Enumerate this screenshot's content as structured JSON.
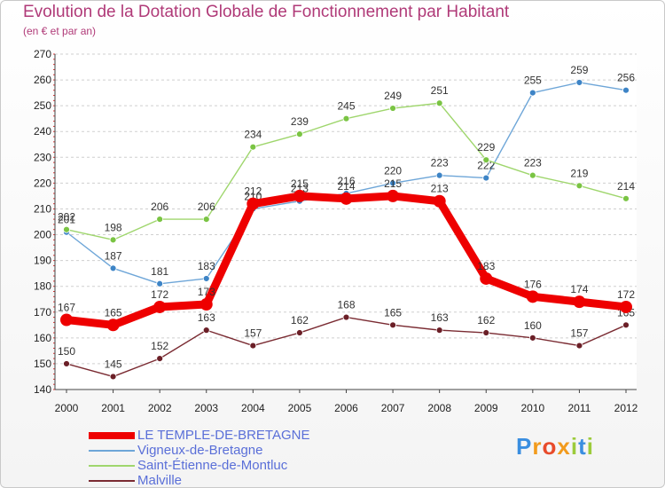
{
  "title": "Evolution de la Dotation Globale de Fonctionnement par Habitant",
  "subtitle": "(en € et par an)",
  "logo": {
    "letters": [
      {
        "ch": "P",
        "color": "#3a8ee0"
      },
      {
        "ch": "r",
        "color": "#f29b1d"
      },
      {
        "ch": "o",
        "color": "#e84b2b"
      },
      {
        "ch": "x",
        "color": "#f29b1d"
      },
      {
        "ch": "i",
        "color": "#9ccb3b"
      },
      {
        "ch": "t",
        "color": "#3a8ee0"
      },
      {
        "ch": "i",
        "color": "#9ccb3b"
      }
    ]
  },
  "chart_data": {
    "type": "line",
    "title": "Evolution de la Dotation Globale de Fonctionnement par Habitant",
    "subtitle": "(en € et par an)",
    "xlabel": "",
    "ylabel": "",
    "x": [
      "2000",
      "2001",
      "2002",
      "2003",
      "2004",
      "2005",
      "2006",
      "2007",
      "2008",
      "2009",
      "2010",
      "2011",
      "2012"
    ],
    "ylim": [
      140,
      270
    ],
    "yticks": [
      140,
      150,
      160,
      170,
      180,
      190,
      200,
      210,
      220,
      230,
      240,
      250,
      260,
      270
    ],
    "grid": "horizontal dashed",
    "legend_position": "bottom-left",
    "series": [
      {
        "name": "Vigneux-de-Bretagne",
        "color": "#6ea6d8",
        "marker": "#3d84c6",
        "values": [
          201,
          187,
          181,
          183,
          210,
          213,
          216,
          220,
          223,
          222,
          255,
          259,
          256
        ]
      },
      {
        "name": "Saint-Étienne-de-Montluc",
        "color": "#9fd66d",
        "marker": "#7ac443",
        "values": [
          202,
          198,
          206,
          206,
          234,
          239,
          245,
          249,
          251,
          229,
          223,
          219,
          214
        ]
      },
      {
        "name": "Malville",
        "color": "#7a2b32",
        "marker": "#6b1f27",
        "values": [
          150,
          145,
          152,
          163,
          157,
          162,
          168,
          165,
          163,
          162,
          160,
          157,
          165
        ]
      },
      {
        "name": "LE TEMPLE-DE-BRETAGNE",
        "color": "#ee0000",
        "marker": "#ee0000",
        "values": [
          167,
          165,
          172,
          173,
          212,
          215,
          214,
          215,
          213,
          183,
          176,
          174,
          172
        ]
      }
    ],
    "legend_order": [
      "LE TEMPLE-DE-BRETAGNE",
      "Vigneux-de-Bretagne",
      "Saint-Étienne-de-Montluc",
      "Malville"
    ]
  }
}
